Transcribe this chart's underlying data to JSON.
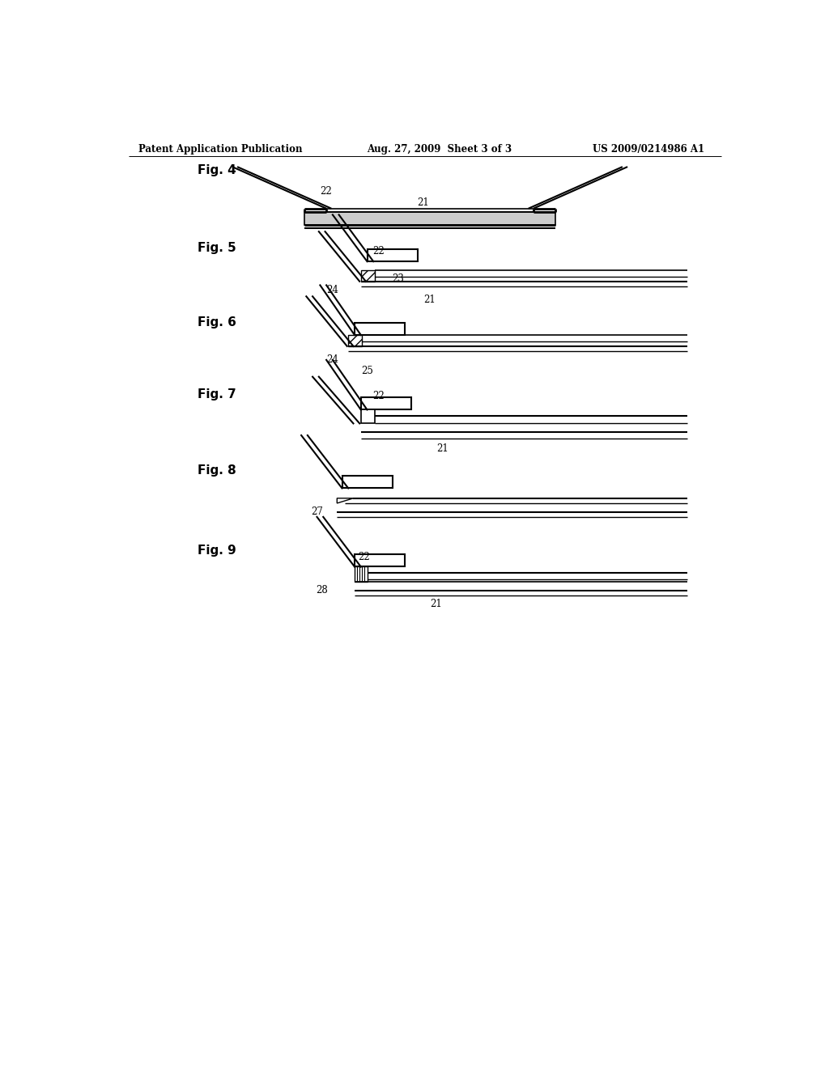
{
  "bg_color": "#ffffff",
  "line_color": "#000000",
  "header_left": "Patent Application Publication",
  "header_mid": "Aug. 27, 2009  Sheet 3 of 3",
  "header_right": "US 2009/0214986 A1",
  "figures": [
    "Fig. 4",
    "Fig. 5",
    "Fig. 6",
    "Fig. 7",
    "Fig. 8",
    "Fig. 9"
  ]
}
